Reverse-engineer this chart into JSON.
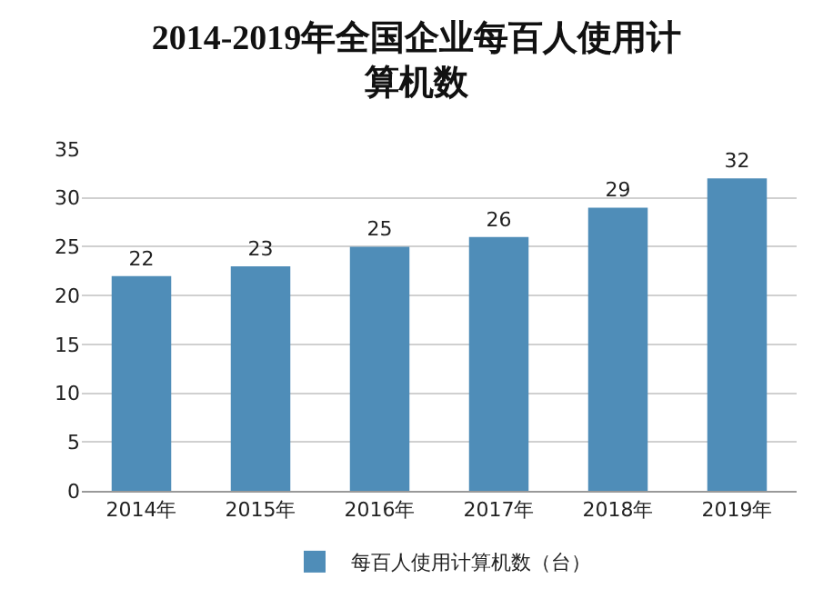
{
  "chart_data": {
    "type": "bar",
    "title": "2014-2019年全国企业每百人使用计算机数",
    "categories": [
      "2014年",
      "2015年",
      "2016年",
      "2017年",
      "2018年",
      "2019年"
    ],
    "series": [
      {
        "name": "每百人使用计算机数（台）",
        "color": "#4f8db8",
        "values": [
          22,
          23,
          25,
          26,
          29,
          32
        ]
      }
    ],
    "ylim": [
      0,
      35
    ],
    "yticks": [
      0,
      5,
      10,
      15,
      20,
      25,
      30,
      35
    ],
    "grid": "y",
    "legend": "bottom",
    "data_labels": true
  }
}
